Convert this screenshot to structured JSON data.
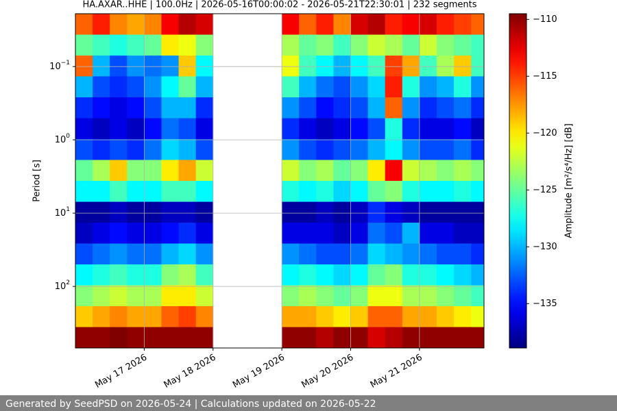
{
  "chart_data": {
    "type": "heatmap",
    "title": "HA.AXAR..HHE | 100.0Hz | 2026-05-16T00:00:02 - 2026-05-21T22:30:01 | 232 segments",
    "y_label": "Period [s]",
    "colorbar_label": "Amplitude [m²/s⁴/Hz] [dB]",
    "colormap": "jet",
    "y_log": true,
    "y_inverted": true,
    "grid": true,
    "xlim": [
      "2026-05-16T00:00:02",
      "2026-05-21T22:30:01"
    ],
    "xticks": [
      {
        "value": "2026-05-17T00:00",
        "label": "May 17 2026"
      },
      {
        "value": "2026-05-18T00:00",
        "label": "May 18 2026"
      },
      {
        "value": "2026-05-19T00:00",
        "label": "May 19 2026"
      },
      {
        "value": "2026-05-20T00:00",
        "label": "May 20 2026"
      },
      {
        "value": "2026-05-21T00:00",
        "label": "May 21 2026"
      }
    ],
    "ylim": [
      0.019,
      692
    ],
    "yticks": [
      {
        "value": 0.1,
        "label": "10",
        "exponent": "−1"
      },
      {
        "value": 1,
        "label": "10",
        "exponent": "0"
      },
      {
        "value": 10,
        "label": "10",
        "exponent": "1"
      },
      {
        "value": 100,
        "label": "10",
        "exponent": "2"
      }
    ],
    "clim": [
      -138.9,
      -109.5
    ],
    "cticks": [
      {
        "value": -110,
        "label": "−110"
      },
      {
        "value": -115,
        "label": "−115"
      },
      {
        "value": -120,
        "label": "−120"
      },
      {
        "value": -125,
        "label": "−125"
      },
      {
        "value": -130,
        "label": "−130"
      },
      {
        "value": -135,
        "label": "−135"
      }
    ],
    "x_bins": [
      "2026-05-16T00:00",
      "2026-05-16T06:00",
      "2026-05-16T12:00",
      "2026-05-16T18:00",
      "2026-05-17T00:00",
      "2026-05-17T06:00",
      "2026-05-17T12:00",
      "2026-05-17T18:00",
      "2026-05-18T00:00",
      "2026-05-18T06:00",
      "2026-05-18T12:00",
      "2026-05-18T18:00",
      "2026-05-19T00:00",
      "2026-05-19T06:00",
      "2026-05-19T12:00",
      "2026-05-19T18:00",
      "2026-05-20T00:00",
      "2026-05-20T06:00",
      "2026-05-20T12:00",
      "2026-05-20T18:00",
      "2026-05-21T00:00",
      "2026-05-21T06:00",
      "2026-05-21T12:00",
      "2026-05-21T18:00",
      "2026-05-22T00:00"
    ],
    "y_bins": [
      0.019,
      0.0367,
      0.0708,
      0.136,
      0.263,
      0.507,
      0.977,
      1.88,
      3.63,
      7.0,
      13.5,
      26.0,
      50.1,
      96.6,
      186,
      359,
      692
    ],
    "values": [
      [
        -116,
        -114,
        -117,
        -118,
        -117,
        -113,
        -111,
        -112,
        null,
        null,
        null,
        null,
        -113,
        -116,
        -114,
        -117,
        -112,
        -111,
        -114,
        -113,
        -112,
        -114,
        -115,
        -116
      ],
      [
        -125,
        -126,
        -127,
        -126,
        -125,
        -120,
        -121,
        -124,
        null,
        null,
        null,
        null,
        -123,
        -125,
        -124,
        -126,
        -124,
        -122,
        -123,
        -125,
        -122,
        -124,
        -125,
        -126
      ],
      [
        -116,
        -130,
        -133,
        -131,
        -132,
        -131,
        -119,
        -128,
        null,
        null,
        null,
        null,
        -121,
        -126,
        -128,
        -130,
        -128,
        -126,
        -115,
        -118,
        -126,
        -123,
        -119,
        -126
      ],
      [
        -130,
        -133,
        -134,
        -133,
        -131,
        -128,
        -125,
        -130,
        null,
        null,
        null,
        null,
        -126,
        -130,
        -132,
        -133,
        -131,
        -129,
        -114,
        -127,
        -131,
        -130,
        -127,
        -131
      ],
      [
        -134,
        -135,
        -136,
        -135,
        -133,
        -130,
        -130,
        -134,
        null,
        null,
        null,
        null,
        -131,
        -133,
        -135,
        -134,
        -133,
        -130,
        -116,
        -131,
        -134,
        -133,
        -132,
        -134
      ],
      [
        -136,
        -137,
        -136,
        -137,
        -135,
        -132,
        -133,
        -136,
        null,
        null,
        null,
        null,
        -134,
        -136,
        -137,
        -136,
        -135,
        -133,
        -127,
        -134,
        -136,
        -136,
        -135,
        -137
      ],
      [
        -133,
        -134,
        -133,
        -134,
        -132,
        -129,
        -130,
        -133,
        null,
        null,
        null,
        null,
        -131,
        -133,
        -134,
        -133,
        -132,
        -130,
        -128,
        -131,
        -133,
        -133,
        -132,
        -134
      ],
      [
        -125,
        -123,
        -119,
        -124,
        -124,
        -120,
        -118,
        -122,
        null,
        null,
        null,
        null,
        -122,
        -124,
        -123,
        -125,
        -124,
        -120,
        -113,
        -122,
        -123,
        -124,
        -123,
        -124
      ],
      [
        -128,
        -128,
        -126,
        -128,
        -128,
        -126,
        -126,
        -128,
        null,
        null,
        null,
        null,
        -127,
        -128,
        -127,
        -129,
        -128,
        -125,
        -124,
        -127,
        -128,
        -128,
        -127,
        -128
      ],
      [
        -138,
        -138,
        -137,
        -138,
        -138,
        -137,
        -137,
        -138,
        null,
        null,
        null,
        null,
        -138,
        -138,
        -137,
        -138,
        -137,
        -134,
        -136,
        -137,
        -138,
        -138,
        -138,
        -138
      ],
      [
        -137,
        -136,
        -135,
        -136,
        -136,
        -135,
        -134,
        -136,
        null,
        null,
        null,
        null,
        -136,
        -136,
        -136,
        -137,
        -136,
        -132,
        -133,
        -130,
        -136,
        -136,
        -137,
        -137
      ],
      [
        -133,
        -132,
        -131,
        -132,
        -132,
        -130,
        -129,
        -131,
        null,
        null,
        null,
        null,
        -131,
        -132,
        -133,
        -133,
        -132,
        -129,
        -130,
        -131,
        -132,
        -133,
        -133,
        -134
      ],
      [
        -128,
        -127,
        -126,
        -127,
        -127,
        -124,
        -123,
        -126,
        null,
        null,
        null,
        null,
        -128,
        -127,
        -128,
        -129,
        -128,
        -125,
        -124,
        -127,
        -127,
        -128,
        -129,
        -130
      ],
      [
        -124,
        -123,
        -122,
        -123,
        -123,
        -120,
        -120,
        -122,
        null,
        null,
        null,
        null,
        -124,
        -123,
        -124,
        -125,
        -124,
        -121,
        -121,
        -123,
        -123,
        -124,
        -125,
        -126
      ],
      [
        -119,
        -118,
        -117,
        -118,
        -118,
        -116,
        -115,
        -117,
        null,
        null,
        null,
        null,
        -118,
        -118,
        -119,
        -120,
        -119,
        -116,
        -116,
        -118,
        -118,
        -119,
        -120,
        -121
      ],
      [
        -110,
        -110,
        -109.5,
        -110,
        -110,
        -110,
        -110,
        -110,
        null,
        null,
        null,
        null,
        -110,
        -110,
        -111,
        -110,
        -110,
        -112,
        -111,
        -110,
        -110,
        -110,
        -110,
        -110
      ]
    ]
  },
  "footer": {
    "text": "Generated by SeedPSD on 2026-05-24 | Calculations updated on 2026-05-22"
  }
}
